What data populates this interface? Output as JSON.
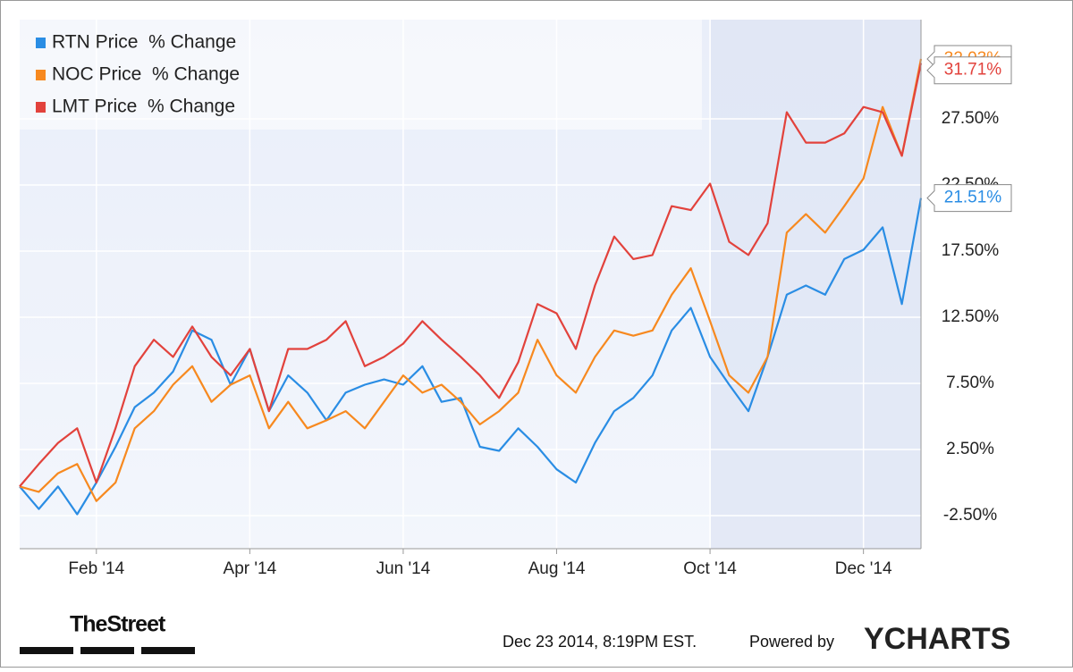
{
  "chart_data": {
    "type": "line",
    "categories": [
      null,
      null,
      null,
      null,
      "Feb '14",
      null,
      null,
      null,
      null,
      null,
      null,
      null,
      "Apr '14",
      null,
      null,
      null,
      null,
      null,
      null,
      null,
      "Jun '14",
      null,
      null,
      null,
      null,
      null,
      null,
      null,
      "Aug '14",
      null,
      null,
      null,
      null,
      null,
      null,
      null,
      "Oct '14",
      null,
      null,
      null,
      null,
      null,
      null,
      null,
      "Dec '14",
      null,
      null,
      null
    ],
    "series": [
      {
        "name": "RTN Price  % Change",
        "color": "#2a8de4",
        "values": [
          -0.3,
          -2.0,
          -0.3,
          -2.4,
          0,
          2.7,
          5.7,
          6.8,
          8.4,
          11.5,
          10.8,
          7.4,
          10.1,
          5.4,
          8.1,
          6.8,
          4.7,
          6.8,
          7.4,
          7.8,
          7.4,
          8.8,
          6.1,
          6.4,
          2.7,
          2.4,
          4.1,
          2.7,
          1.0,
          0,
          3.0,
          5.4,
          6.4,
          8.1,
          11.5,
          13.2,
          9.5,
          7.4,
          5.4,
          9.5,
          14.2,
          14.9,
          14.2,
          16.9,
          17.6,
          19.3,
          13.5,
          21.51
        ],
        "value_labels": [
          null,
          null,
          null,
          null,
          null,
          null,
          null,
          null,
          null,
          null,
          null,
          null,
          null,
          null,
          null,
          null,
          null,
          null,
          null,
          null,
          null,
          null,
          null,
          null,
          null,
          null,
          null,
          null,
          null,
          null,
          null,
          null,
          null,
          null,
          null,
          null,
          null,
          null,
          null,
          null,
          null,
          null,
          null,
          null,
          null,
          null,
          null,
          "21.51%"
        ]
      },
      {
        "name": "NOC Price  % Change",
        "color": "#f7891f",
        "values": [
          -0.3,
          -0.7,
          0.7,
          1.4,
          -1.4,
          0,
          4.1,
          5.4,
          7.4,
          8.8,
          6.1,
          7.4,
          8.1,
          4.1,
          6.1,
          4.1,
          4.7,
          5.4,
          4.1,
          6.1,
          8.1,
          6.8,
          7.4,
          6.1,
          4.4,
          5.4,
          6.8,
          10.8,
          8.1,
          6.8,
          9.5,
          11.5,
          11.1,
          11.5,
          14.2,
          16.2,
          12.2,
          8.1,
          6.8,
          9.5,
          18.9,
          20.3,
          18.9,
          20.9,
          23.0,
          28.4,
          24.7,
          32.03
        ],
        "value_labels": [
          null,
          null,
          null,
          null,
          null,
          null,
          null,
          null,
          null,
          null,
          null,
          null,
          null,
          null,
          null,
          null,
          null,
          null,
          null,
          null,
          null,
          null,
          null,
          null,
          null,
          null,
          null,
          null,
          null,
          null,
          null,
          null,
          null,
          null,
          null,
          null,
          null,
          null,
          null,
          null,
          null,
          null,
          null,
          null,
          null,
          null,
          null,
          "32.03%"
        ]
      },
      {
        "name": "LMT Price  % Change",
        "color": "#e2423c",
        "values": [
          -0.3,
          1.4,
          3.0,
          4.1,
          0,
          4.1,
          8.8,
          10.8,
          9.5,
          11.8,
          9.5,
          8.1,
          10.1,
          5.4,
          10.1,
          10.1,
          10.8,
          12.2,
          8.8,
          9.5,
          10.5,
          12.2,
          10.8,
          9.5,
          8.1,
          6.4,
          9.1,
          13.5,
          12.8,
          10.1,
          14.9,
          18.6,
          16.9,
          17.2,
          20.9,
          20.6,
          22.6,
          18.2,
          17.2,
          19.6,
          28.0,
          25.7,
          25.7,
          26.4,
          28.4,
          28.0,
          24.7,
          31.71
        ],
        "value_labels": [
          null,
          null,
          null,
          null,
          null,
          null,
          null,
          null,
          null,
          null,
          null,
          null,
          null,
          null,
          null,
          null,
          null,
          null,
          null,
          null,
          null,
          null,
          null,
          null,
          null,
          null,
          null,
          null,
          null,
          null,
          null,
          null,
          null,
          null,
          null,
          null,
          null,
          null,
          null,
          null,
          null,
          null,
          null,
          null,
          null,
          null,
          null,
          "31.71%"
        ]
      }
    ],
    "ylim": [
      -5,
      35
    ],
    "yticks": [
      {
        "value": -2.5,
        "label": "-2.50%"
      },
      {
        "value": 2.5,
        "label": "2.50%"
      },
      {
        "value": 7.5,
        "label": "7.50%"
      },
      {
        "value": 12.5,
        "label": "12.50%"
      },
      {
        "value": 17.5,
        "label": "17.50%"
      },
      {
        "value": 22.5,
        "label": "22.50%"
      },
      {
        "value": 27.5,
        "label": "27.50%"
      }
    ],
    "grid": true,
    "legend": "top-left"
  },
  "footer": {
    "brand": "TheStreet",
    "timestamp": "Dec 23 2014, 8:19PM EST.",
    "powered_by": "Powered by",
    "logo": "YCHARTS"
  }
}
